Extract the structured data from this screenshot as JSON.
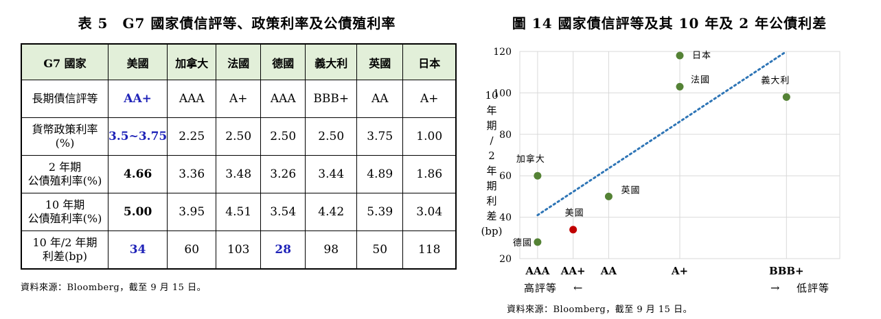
{
  "table": {
    "title": "表 5　G7 國家債信評等、政策利率及公債殖利率",
    "header": [
      "G7 國家",
      "美國",
      "加拿大",
      "法國",
      "德國",
      "義大利",
      "英國",
      "日本"
    ],
    "rows": [
      {
        "label": "長期債信評等",
        "cells": [
          "AA+",
          "AAA",
          "A+",
          "AAA",
          "BBB+",
          "AA",
          "A+"
        ]
      },
      {
        "label_l1": "貨幣政策利率",
        "label_l2": "(%)",
        "cells": [
          "3.5~3.75",
          "2.25",
          "2.50",
          "2.50",
          "2.50",
          "3.75",
          "1.00"
        ]
      },
      {
        "label_l1": "2 年期",
        "label_l2": "公債殖利率(%)",
        "cells": [
          "4.66",
          "3.36",
          "3.48",
          "3.26",
          "3.44",
          "4.89",
          "1.86"
        ]
      },
      {
        "label_l1": "10 年期",
        "label_l2": "公債殖利率(%)",
        "cells": [
          "5.00",
          "3.95",
          "4.51",
          "3.54",
          "4.42",
          "5.39",
          "3.04"
        ]
      },
      {
        "label_l1": "10 年/2 年期",
        "label_l2": "利差(bp)",
        "cells": [
          "34",
          "60",
          "103",
          "28",
          "98",
          "50",
          "118"
        ]
      }
    ],
    "source": "資料來源：Bloomberg，截至 9 月 15 日。"
  },
  "chart": {
    "title": "圖 14  國家債信評等及其 10 年及 2 年公債利差",
    "source": "資料來源：Bloomberg，截至 9 月 15 日。",
    "high_label": "高評等",
    "low_label": "低評等",
    "left_arrow": "←",
    "right_arrow": "→",
    "colors": {
      "points": "#548235",
      "highlight": "#c00000",
      "trend": "#2e75b6",
      "grid": "#d9d9d9"
    }
  },
  "chart_data": {
    "type": "scatter",
    "title": "",
    "xlabel": "",
    "ylabel_chars": [
      "10",
      "年",
      "期",
      "/",
      "2",
      "年",
      "期",
      "利",
      "差",
      "(bp)"
    ],
    "categories": [
      "AAA",
      "AA+",
      "AA",
      "A+",
      "BBB+"
    ],
    "category_positions": [
      0,
      1,
      2,
      4,
      7
    ],
    "xlim": [
      -0.5,
      8.5
    ],
    "ylim": [
      20,
      120
    ],
    "yticks": [
      20,
      40,
      60,
      80,
      100,
      120
    ],
    "grid": true,
    "points": [
      {
        "label": "德國",
        "rating": "AAA",
        "x": 0,
        "y": 28
      },
      {
        "label": "加拿大",
        "rating": "AAA",
        "x": 0,
        "y": 60
      },
      {
        "label": "美國",
        "rating": "AA+",
        "x": 1,
        "y": 34,
        "highlight": true
      },
      {
        "label": "英國",
        "rating": "AA",
        "x": 2,
        "y": 50
      },
      {
        "label": "法國",
        "rating": "A+",
        "x": 4,
        "y": 103
      },
      {
        "label": "日本",
        "rating": "A+",
        "x": 4,
        "y": 118
      },
      {
        "label": "義大利",
        "rating": "BBB+",
        "x": 7,
        "y": 98
      }
    ],
    "trendline": {
      "x": [
        0,
        7
      ],
      "y": [
        41,
        120
      ]
    }
  }
}
